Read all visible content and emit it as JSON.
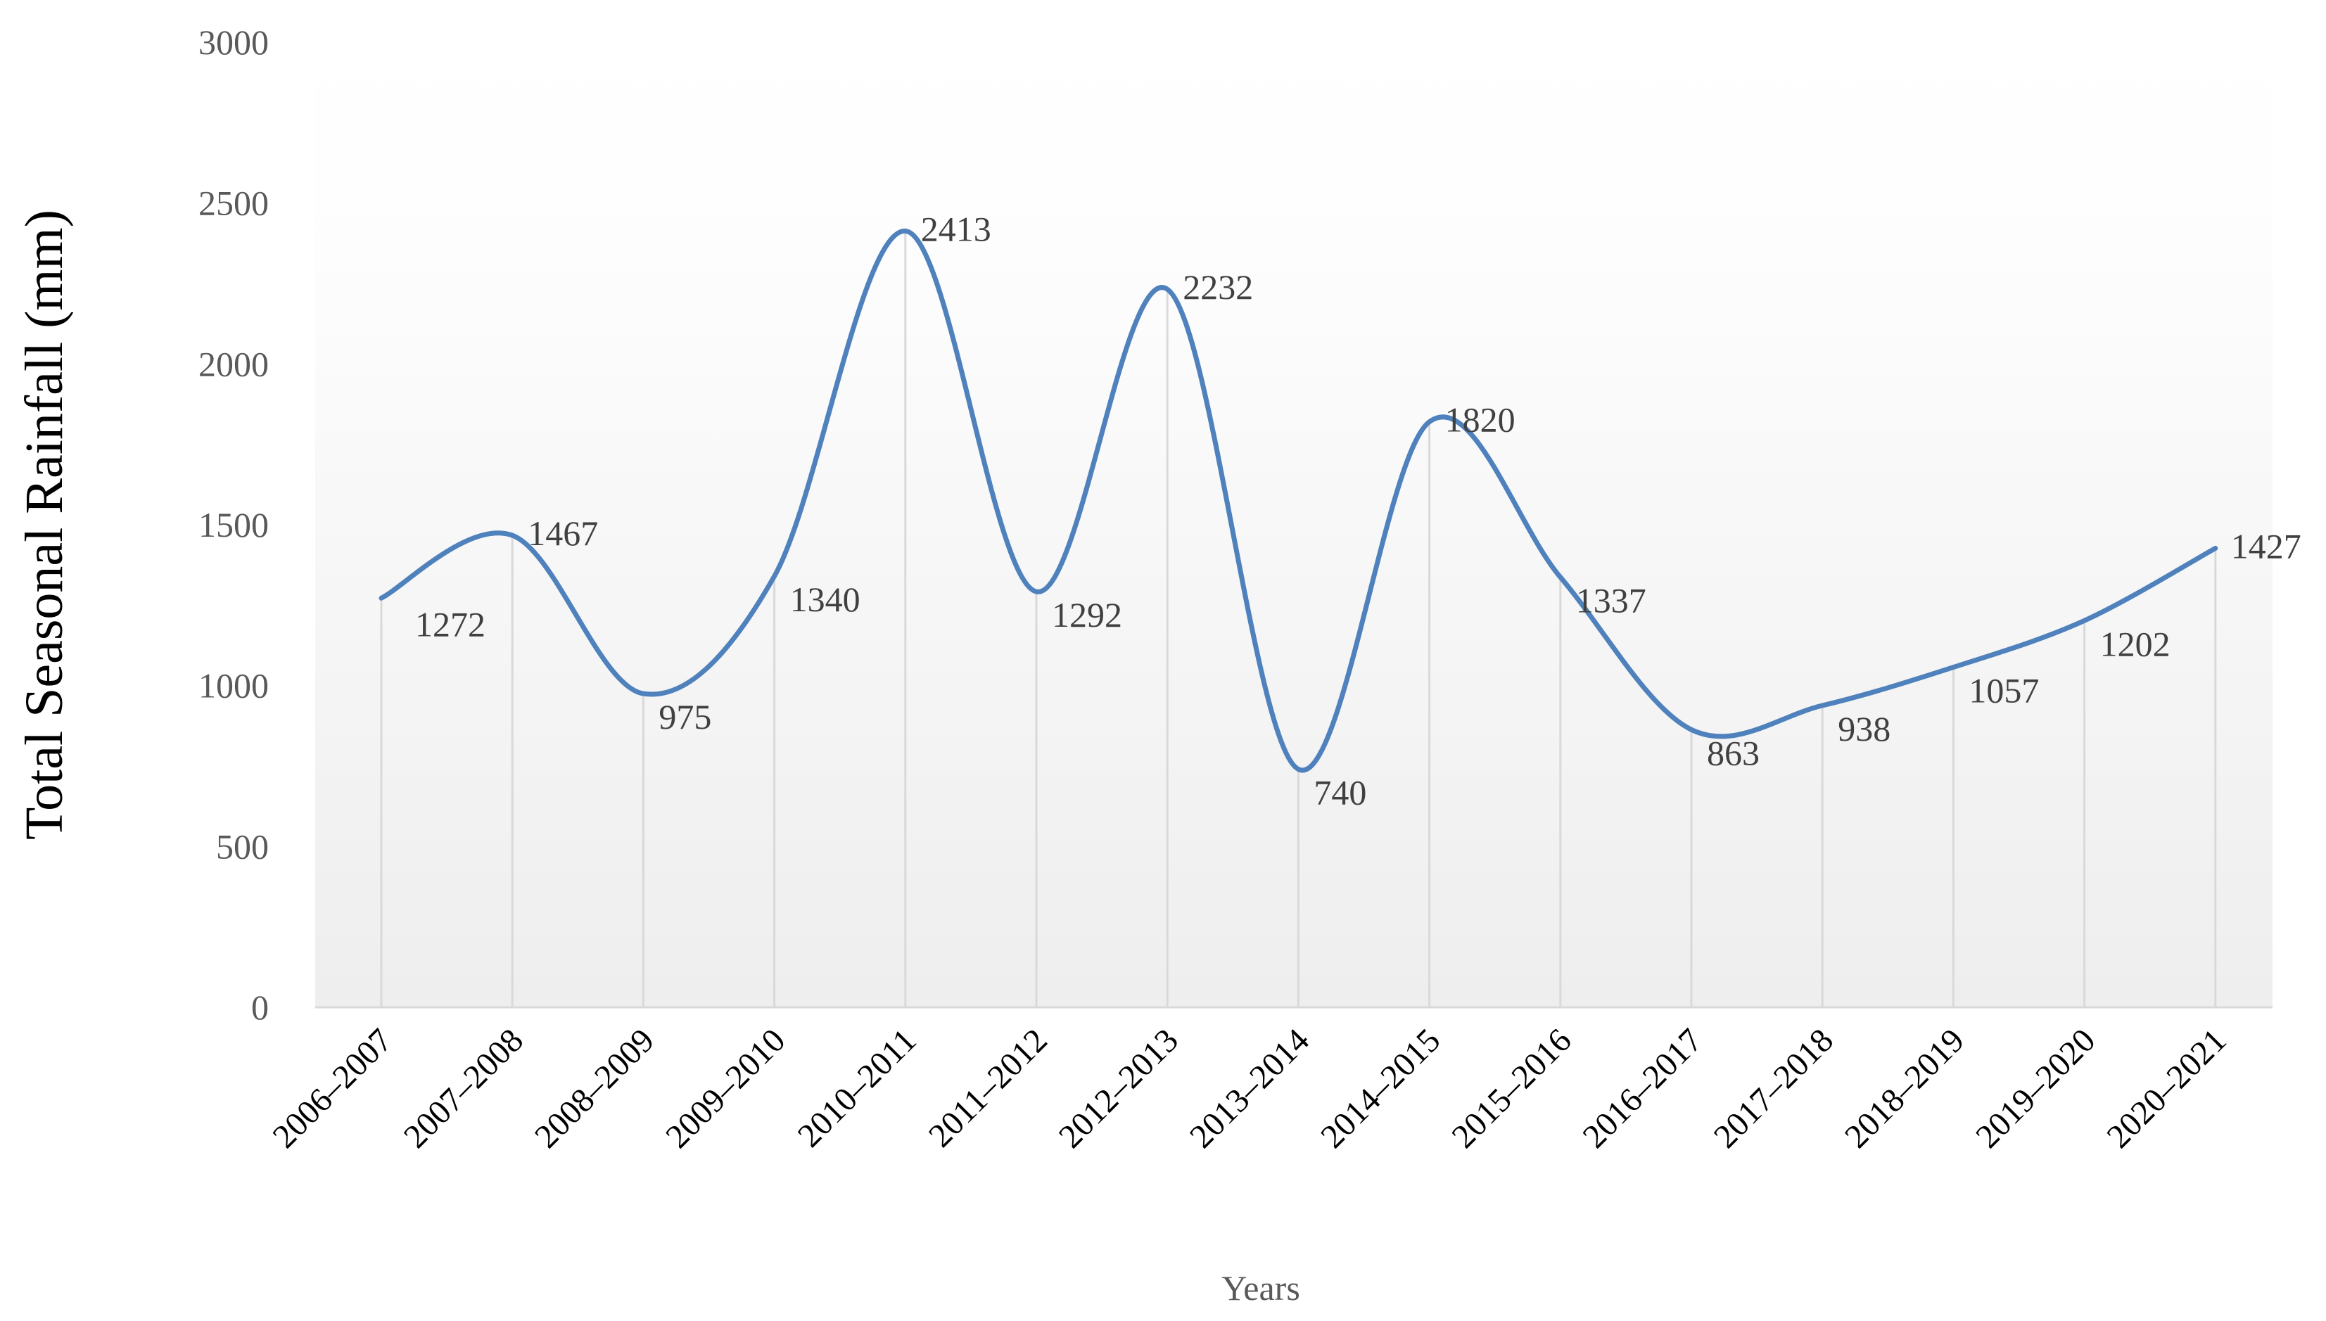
{
  "chart_data": {
    "type": "line",
    "smooth": true,
    "title": "",
    "xlabel": "Years",
    "ylabel": "Total Seasonal Rainfall (mm)",
    "ylim": [
      0,
      3000
    ],
    "yticks": [
      "0",
      "500",
      "1000",
      "1500",
      "2000",
      "2500",
      "3000"
    ],
    "categories": [
      "2006–2007",
      "2007–2008",
      "2008–2009",
      "2009–2010",
      "2010–2011",
      "2011–2012",
      "2012–2013",
      "2013–2014",
      "2014–2015",
      "2015–2016",
      "2016–2017",
      "2017–2018",
      "2018–2019",
      "2019–2020",
      "2020–2021"
    ],
    "series": [
      {
        "values": [
          1272,
          1467,
          975,
          1340,
          2413,
          1292,
          2232,
          740,
          1820,
          1337,
          863,
          938,
          1057,
          1202,
          1427
        ],
        "color": "#4f81bd",
        "data_labels": [
          "1272",
          "1467",
          "975",
          "1340",
          "2413",
          "1292",
          "2232",
          "740",
          "1820",
          "1337",
          "863",
          "938",
          "1057",
          "1202",
          "1427"
        ]
      }
    ],
    "grid": "vertical drop lines",
    "legend": "none",
    "plot_background": "light gray gradient"
  }
}
